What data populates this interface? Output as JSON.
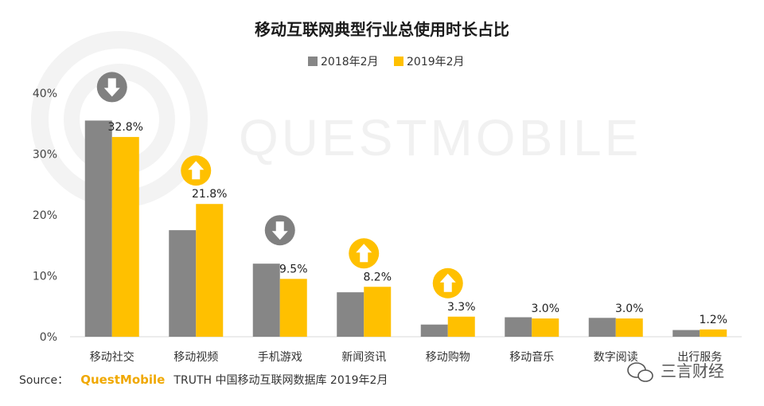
{
  "chart_data": {
    "type": "bar",
    "title": "移动互联网典型行业总使用时长占比",
    "categories": [
      "移动社交",
      "移动视频",
      "手机游戏",
      "新闻资讯",
      "移动购物",
      "移动音乐",
      "数字阅读",
      "出行服务"
    ],
    "series": [
      {
        "name": "2018年2月",
        "color": "#868686",
        "values": [
          35.5,
          17.5,
          12.0,
          7.3,
          2.0,
          3.2,
          3.1,
          1.1
        ]
      },
      {
        "name": "2019年2月",
        "color": "#ffc000",
        "values": [
          32.8,
          21.8,
          9.5,
          8.2,
          3.3,
          3.0,
          3.0,
          1.2
        ]
      }
    ],
    "value_labels": [
      "32.8%",
      "21.8%",
      "9.5%",
      "8.2%",
      "3.3%",
      "3.0%",
      "3.0%",
      "1.2%"
    ],
    "trend_icons": [
      {
        "category": "移动社交",
        "direction": "down",
        "color": "#808080"
      },
      {
        "category": "移动视频",
        "direction": "up",
        "color": "#ffc000"
      },
      {
        "category": "手机游戏",
        "direction": "down",
        "color": "#808080"
      },
      {
        "category": "新闻资讯",
        "direction": "up",
        "color": "#ffc000"
      },
      {
        "category": "移动购物",
        "direction": "up",
        "color": "#ffc000"
      }
    ],
    "yticks": [
      "0%",
      "10%",
      "20%",
      "30%",
      "40%"
    ],
    "ylim": [
      0,
      40
    ],
    "grid": false,
    "legend_position": "top-center"
  },
  "source": {
    "prefix": "Source：",
    "brand": "QuestMobile",
    "text": "TRUTH 中国移动互联网数据库 2019年2月"
  },
  "watermark": "QUESTMOBILE",
  "signature": "三言财经"
}
